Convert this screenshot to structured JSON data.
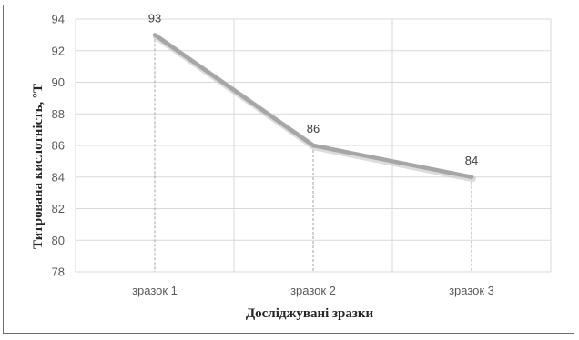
{
  "chart_data": {
    "type": "line",
    "categories": [
      "зразок 1",
      "зразок 2",
      "зразок 3"
    ],
    "values": [
      93,
      86,
      84
    ],
    "data_labels": [
      "93",
      "86",
      "84"
    ],
    "xlabel": "Досліджувані зразки",
    "ylabel": "Титрована кислотність, °Т",
    "ylim": [
      78,
      94
    ],
    "yticks": [
      78,
      80,
      82,
      84,
      86,
      88,
      90,
      92,
      94
    ],
    "grid": true,
    "drop_lines": true,
    "colors": {
      "line": "#a6a6a6",
      "grid": "#d9d9d9",
      "drop_line": "#a0a0a0"
    }
  }
}
